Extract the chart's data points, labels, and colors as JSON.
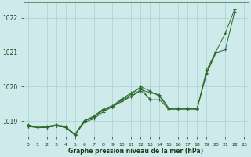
{
  "title": "Graphe pression niveau de la mer (hPa)",
  "background_color": "#ceeaea",
  "grid_color": "#aacfcf",
  "line_color": "#2d6a2d",
  "ylim": [
    1018.55,
    1022.45
  ],
  "yticks": [
    1019,
    1020,
    1021,
    1022
  ],
  "xtick_labels": [
    "0",
    "1",
    "2",
    "3",
    "4",
    "5",
    "6",
    "7",
    "8",
    "9",
    "10",
    "11",
    "12",
    "13",
    "14",
    "15",
    "16",
    "17",
    "18",
    "19",
    "20",
    "21",
    "22",
    "23"
  ],
  "lines": [
    [
      1018.85,
      1018.82,
      1018.82,
      1018.87,
      1018.82,
      1018.6,
      1019.0,
      1019.12,
      1019.32,
      1019.42,
      1019.62,
      1019.78,
      1020.0,
      1019.87,
      1019.72,
      1019.35,
      1019.35,
      1019.35,
      1019.35,
      1020.48,
      1021.02,
      1021.55,
      1022.25,
      null
    ],
    [
      1018.85,
      1018.82,
      1018.82,
      1018.87,
      1018.82,
      1018.6,
      1019.02,
      1019.15,
      1019.35,
      1019.45,
      1019.65,
      1019.82,
      1019.97,
      1019.62,
      1019.62,
      1019.35,
      1019.35,
      1019.35,
      1019.35,
      1020.4,
      1021.02,
      null,
      null,
      null
    ],
    [
      1018.87,
      1018.82,
      1018.82,
      1018.87,
      1018.82,
      1018.6,
      1018.97,
      1019.07,
      1019.27,
      1019.42,
      1019.57,
      1019.72,
      1019.88,
      1019.65,
      null,
      null,
      null,
      null,
      null,
      null,
      null,
      null,
      null,
      null
    ],
    [
      1018.9,
      1018.82,
      1018.85,
      1018.9,
      1018.85,
      1018.62,
      1019.02,
      1019.12,
      1019.32,
      1019.42,
      1019.62,
      1019.72,
      1019.92,
      1019.82,
      1019.77,
      1019.37,
      1019.37,
      1019.37,
      1019.37,
      1020.37,
      1020.98,
      1021.07,
      1022.18,
      null
    ]
  ]
}
